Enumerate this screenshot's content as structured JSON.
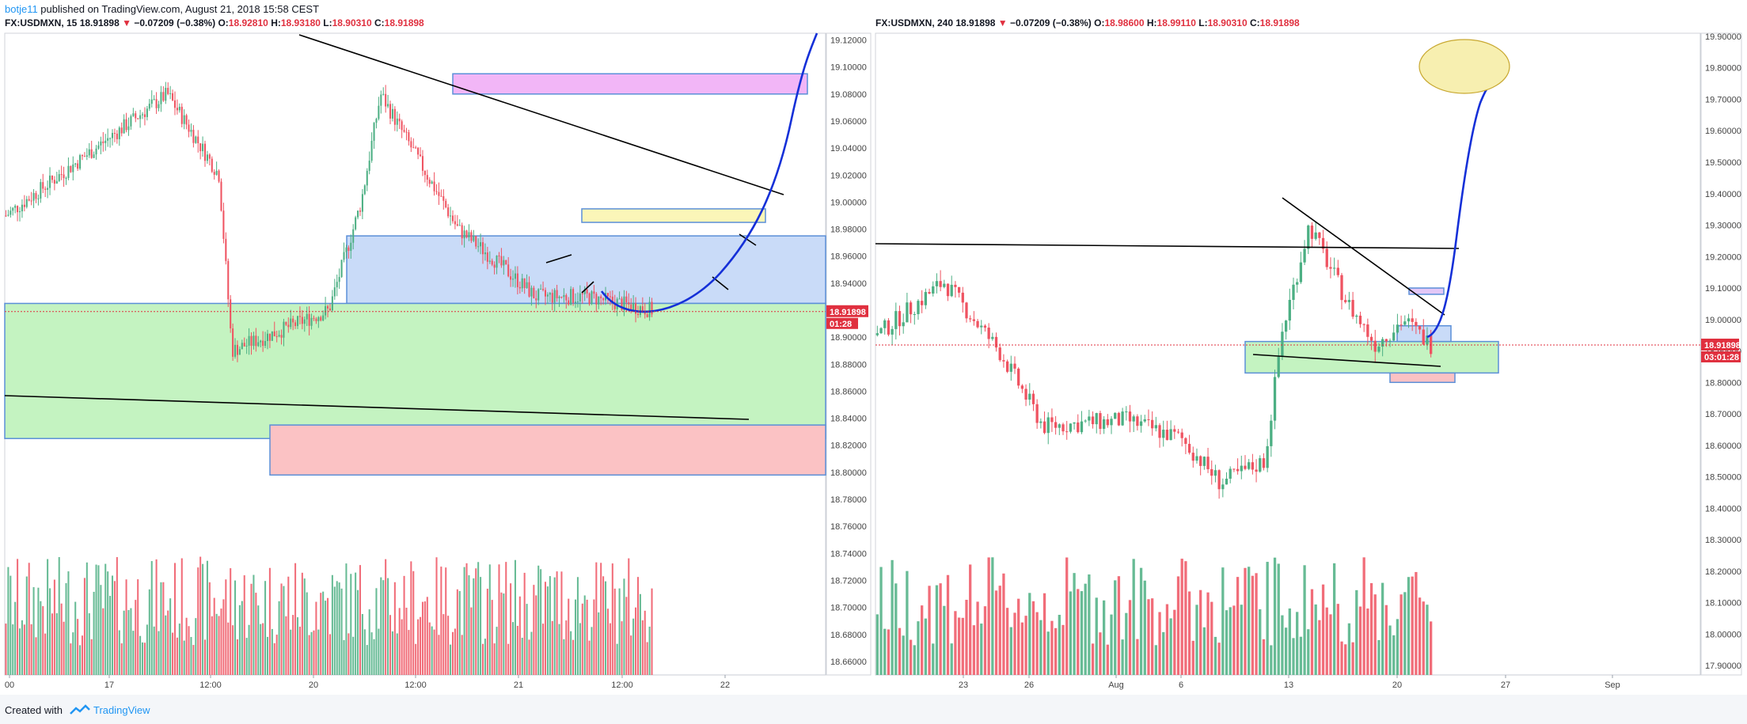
{
  "header": {
    "author": "botje11",
    "published": " published on TradingView.com, August 21, 2018 15:58 CEST"
  },
  "left_panel": {
    "symbol": "FX:USDMXN, 15",
    "last": "18.91898",
    "change": "−0.07209 (−0.38%)",
    "o_label": "O:",
    "o": "18.92810",
    "h_label": "H:",
    "h": "18.93180",
    "l_label": "L:",
    "l": "18.90310",
    "c_label": "C:",
    "c": "18.91898"
  },
  "right_panel": {
    "symbol": "FX:USDMXN, 240",
    "last": "18.91898",
    "change": "−0.07209 (−0.38%)",
    "o_label": "O:",
    "o": "18.98600",
    "h_label": "H:",
    "h": "18.99110",
    "l_label": "L:",
    "l": "18.90310",
    "c_label": "C:",
    "c": "18.91898"
  },
  "footer": {
    "created_with": "Created with",
    "brand": "TradingView"
  },
  "colors": {
    "up": "#4caf83",
    "down": "#ef5361",
    "blue_curve": "#1530d8",
    "price_line": "#e0303f"
  },
  "chart_data": [
    {
      "type": "candlestick",
      "title": "FX:USDMXN, 15",
      "y_ticks": [
        "19.12000",
        "19.10000",
        "19.08000",
        "19.06000",
        "19.04000",
        "19.02000",
        "19.00000",
        "18.98000",
        "18.96000",
        "18.94000",
        "18.92000",
        "18.90000",
        "18.88000",
        "18.86000",
        "18.84000",
        "18.82000",
        "18.80000",
        "18.78000",
        "18.76000",
        "18.74000",
        "18.72000",
        "18.70000",
        "18.68000",
        "18.66000"
      ],
      "ylim": [
        18.65,
        19.125
      ],
      "x_ticks": [
        "00",
        "17",
        "12:00",
        "20",
        "12:00",
        "21",
        "12:00",
        "22"
      ],
      "last_price_label": "18.91898",
      "countdown_label": "01:28",
      "zones": [
        {
          "name": "magenta-zone",
          "y": [
            19.08,
            19.095
          ],
          "color": "#f2b6f7"
        },
        {
          "name": "yellow-zone",
          "y": [
            18.985,
            18.995
          ],
          "color": "#fbf6b8"
        },
        {
          "name": "blue-zone",
          "y": [
            18.925,
            18.975
          ],
          "color": "#c9dbf8"
        },
        {
          "name": "green-zone",
          "y": [
            18.825,
            18.925
          ],
          "color": "#c4f3c1"
        },
        {
          "name": "red-zone",
          "y": [
            18.798,
            18.835
          ],
          "color": "#fbc2c4"
        }
      ],
      "trend_lines": [
        {
          "from": [
            "21 00:00",
            19.122
          ],
          "to": [
            "22 04:00",
            19.012
          ]
        },
        {
          "from": [
            "16 00:00",
            18.868
          ],
          "to": [
            "22 00:00",
            18.845
          ]
        }
      ]
    },
    {
      "type": "candlestick",
      "title": "FX:USDMXN, 240",
      "y_ticks": [
        "19.90000",
        "19.80000",
        "19.70000",
        "19.60000",
        "19.50000",
        "19.40000",
        "19.30000",
        "19.20000",
        "19.10000",
        "19.00000",
        "18.90000",
        "18.80000",
        "18.70000",
        "18.60000",
        "18.50000",
        "18.40000",
        "18.30000",
        "18.20000",
        "18.10000",
        "18.00000",
        "17.90000"
      ],
      "ylim": [
        17.87,
        19.91
      ],
      "x_ticks": [
        "23",
        "26",
        "Aug",
        "6",
        "13",
        "20",
        "27",
        "Sep"
      ],
      "last_price_label": "18.91898",
      "countdown_label": "03:01:28",
      "zones": [
        {
          "name": "green-zone",
          "y": [
            18.83,
            18.93
          ],
          "color": "#c4f3c1"
        },
        {
          "name": "blue-small-zone",
          "y": [
            18.93,
            18.98
          ],
          "color": "#c9dbf8"
        },
        {
          "name": "red-small-zone",
          "y": [
            18.8,
            18.83
          ],
          "color": "#fbc2c4"
        },
        {
          "name": "purple-small-zone",
          "y": [
            19.08,
            19.1
          ],
          "color": "#e3c8f7"
        }
      ],
      "target_ellipse": {
        "y": 19.8
      }
    }
  ]
}
